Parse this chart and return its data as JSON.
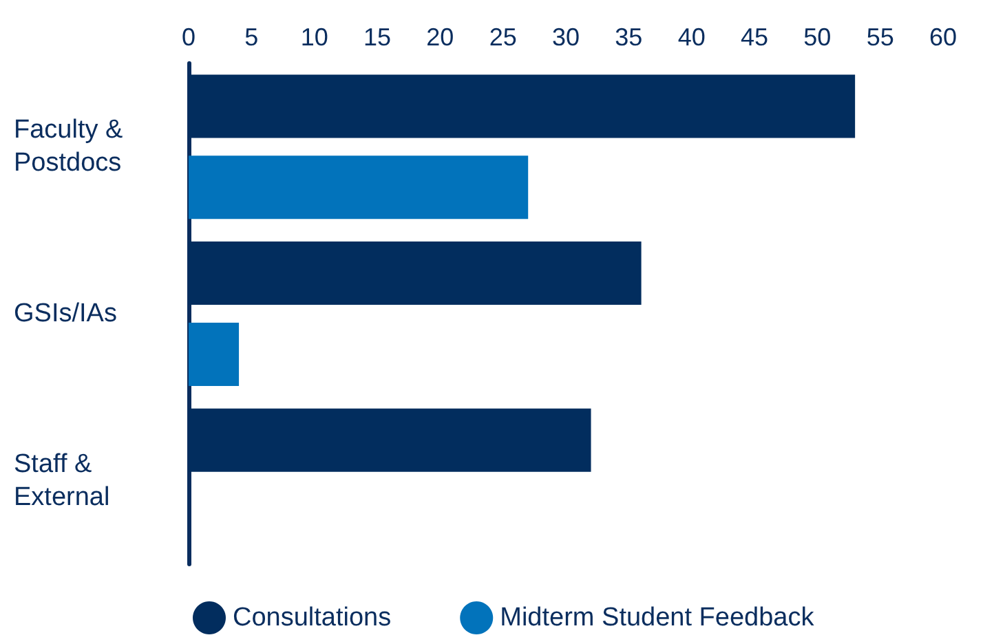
{
  "chart_data": {
    "type": "bar",
    "orientation": "horizontal",
    "categories": [
      "Faculty & Postdocs",
      "GSIs/IAs",
      "Staff & External"
    ],
    "series": [
      {
        "name": "Consultations",
        "color": "#022d5e",
        "values": [
          53,
          36,
          32
        ]
      },
      {
        "name": "Midterm Student Feedback",
        "color": "#0273bb",
        "values": [
          27,
          4,
          null
        ]
      }
    ],
    "xlim": [
      0,
      60
    ],
    "xticks": [
      0,
      5,
      10,
      15,
      20,
      25,
      30,
      35,
      40,
      45,
      50,
      55,
      60
    ],
    "grid": false,
    "legend": "bottom"
  }
}
